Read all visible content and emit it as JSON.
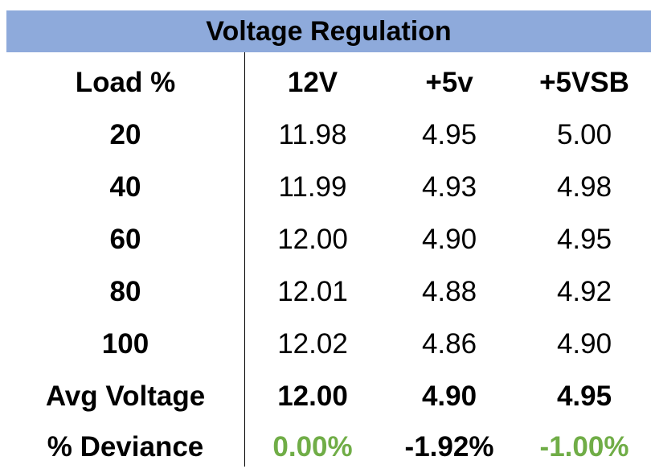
{
  "title": "Voltage Regulation",
  "colors": {
    "header_bg": "#8eaadb",
    "positive_green": "#70ad47",
    "text": "#000000"
  },
  "columns": [
    "Load %",
    "12V",
    "+5v",
    "+5VSB"
  ],
  "rows": [
    {
      "load": "20",
      "v12": "11.98",
      "v5": "4.95",
      "v5sb": "5.00"
    },
    {
      "load": "40",
      "v12": "11.99",
      "v5": "4.93",
      "v5sb": "4.98"
    },
    {
      "load": "60",
      "v12": "12.00",
      "v5": "4.90",
      "v5sb": "4.95"
    },
    {
      "load": "80",
      "v12": "12.01",
      "v5": "4.88",
      "v5sb": "4.92"
    },
    {
      "load": "100",
      "v12": "12.02",
      "v5": "4.86",
      "v5sb": "4.90"
    }
  ],
  "avg": {
    "label": "Avg Voltage",
    "v12": "12.00",
    "v5": "4.90",
    "v5sb": "4.95"
  },
  "deviance": {
    "label": "% Deviance",
    "v12": "0.00%",
    "v5": "-1.92%",
    "v5sb": "-1.00%"
  }
}
